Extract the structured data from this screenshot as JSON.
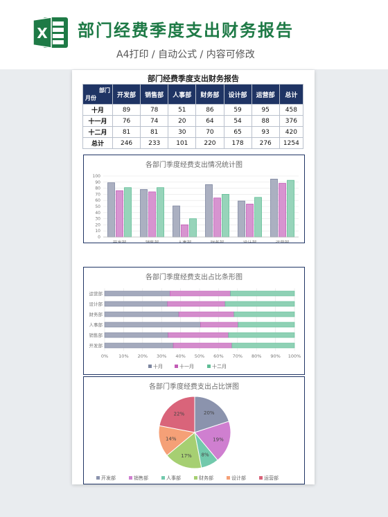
{
  "header": {
    "icon_letter": "X",
    "title": "部门经费季度支出财务报告",
    "subtitle": "A4打印 / 自动公式 / 内容可修改"
  },
  "sheet": {
    "title": "部门经费季度支出财务报告",
    "table": {
      "corner_top": "部门",
      "corner_bottom": "月份",
      "columns": [
        "开发部",
        "销售部",
        "人事部",
        "财务部",
        "设计部",
        "运营部",
        "总计"
      ],
      "rows": [
        {
          "label": "十月",
          "values": [
            "89",
            "78",
            "51",
            "86",
            "59",
            "95",
            "458"
          ]
        },
        {
          "label": "十一月",
          "values": [
            "76",
            "74",
            "20",
            "64",
            "54",
            "88",
            "376"
          ]
        },
        {
          "label": "十二月",
          "values": [
            "81",
            "81",
            "30",
            "70",
            "65",
            "93",
            "420"
          ]
        },
        {
          "label": "总计",
          "values": [
            "246",
            "233",
            "101",
            "220",
            "178",
            "276",
            "1254"
          ]
        }
      ]
    }
  },
  "colors": {
    "header_green": "#1e7a46",
    "table_header": "#1f3464",
    "series": [
      "#7d86a0",
      "#c25bb6",
      "#5fbd95"
    ],
    "pie": [
      "#8b93ad",
      "#cf7fd0",
      "#72c9ac",
      "#a6cf72",
      "#f5a077",
      "#d9647a"
    ]
  },
  "chart_data": [
    {
      "type": "bar",
      "title": "各部门季度经费支出情况统计图",
      "categories": [
        "开发部",
        "销售部",
        "人事部",
        "财务部",
        "设计部",
        "运营部"
      ],
      "series": [
        {
          "name": "十月",
          "values": [
            89,
            78,
            51,
            86,
            59,
            95
          ]
        },
        {
          "name": "十一月",
          "values": [
            76,
            74,
            20,
            64,
            54,
            88
          ]
        },
        {
          "name": "十二月",
          "values": [
            81,
            81,
            30,
            70,
            65,
            93
          ]
        }
      ],
      "ylim": [
        0,
        100
      ],
      "yticks": [
        0,
        10,
        20,
        30,
        40,
        50,
        60,
        70,
        80,
        90,
        100
      ],
      "grid": true,
      "legend": "bottom"
    },
    {
      "type": "bar",
      "orientation": "horizontal-stacked-100",
      "title": "各部门季度经费支出占比条形图",
      "categories": [
        "运营部",
        "设计部",
        "财务部",
        "人事部",
        "销售部",
        "开发部"
      ],
      "series": [
        {
          "name": "十月",
          "values": [
            95,
            59,
            86,
            51,
            78,
            89
          ]
        },
        {
          "name": "十一月",
          "values": [
            88,
            54,
            64,
            20,
            74,
            76
          ]
        },
        {
          "name": "十二月",
          "values": [
            93,
            65,
            70,
            30,
            81,
            81
          ]
        }
      ],
      "xticks": [
        "0%",
        "10%",
        "20%",
        "30%",
        "40%",
        "50%",
        "60%",
        "70%",
        "80%",
        "90%",
        "100%"
      ],
      "grid": true,
      "legend": "bottom"
    },
    {
      "type": "pie",
      "title": "各部门季度经费支出占比饼图",
      "labels": [
        "开发部",
        "销售部",
        "人事部",
        "财务部",
        "设计部",
        "运营部"
      ],
      "values": [
        20,
        19,
        8,
        17,
        14,
        22
      ],
      "data_labels": [
        "20%",
        "19%",
        "8%",
        "17%",
        "14%",
        "22%"
      ],
      "legend": "bottom"
    }
  ]
}
